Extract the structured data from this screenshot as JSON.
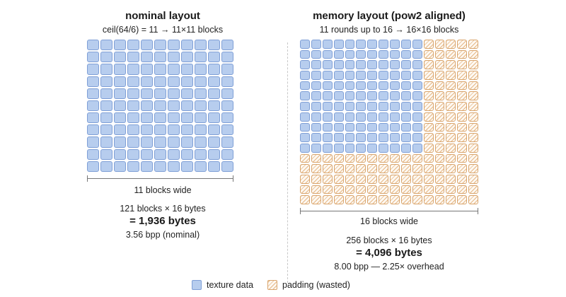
{
  "nominal": {
    "title": "nominal layout",
    "subtitle": "ceil(64/6) = 11 → 11×11 blocks",
    "grid_size": 11,
    "width_label": "11 blocks wide",
    "calc": "121 blocks × 16 bytes",
    "total": "= 1,936 bytes",
    "bpp": "3.56 bpp (nominal)"
  },
  "memory": {
    "title": "memory layout (pow2 aligned)",
    "subtitle": "11 rounds up to 16 → 16×16 blocks",
    "grid_size": 16,
    "data_size": 11,
    "width_label": "16 blocks wide",
    "calc": "256 blocks × 16 bytes",
    "total": "= 4,096 bytes",
    "bpp": "8.00 bpp — 2.25× overhead"
  },
  "legend": {
    "texture": "texture data",
    "padding": "padding (wasted)"
  },
  "colors": {
    "texture_fill": "#b7cdee",
    "texture_border": "#7f9fd6",
    "padding_border": "#d9a56d"
  }
}
